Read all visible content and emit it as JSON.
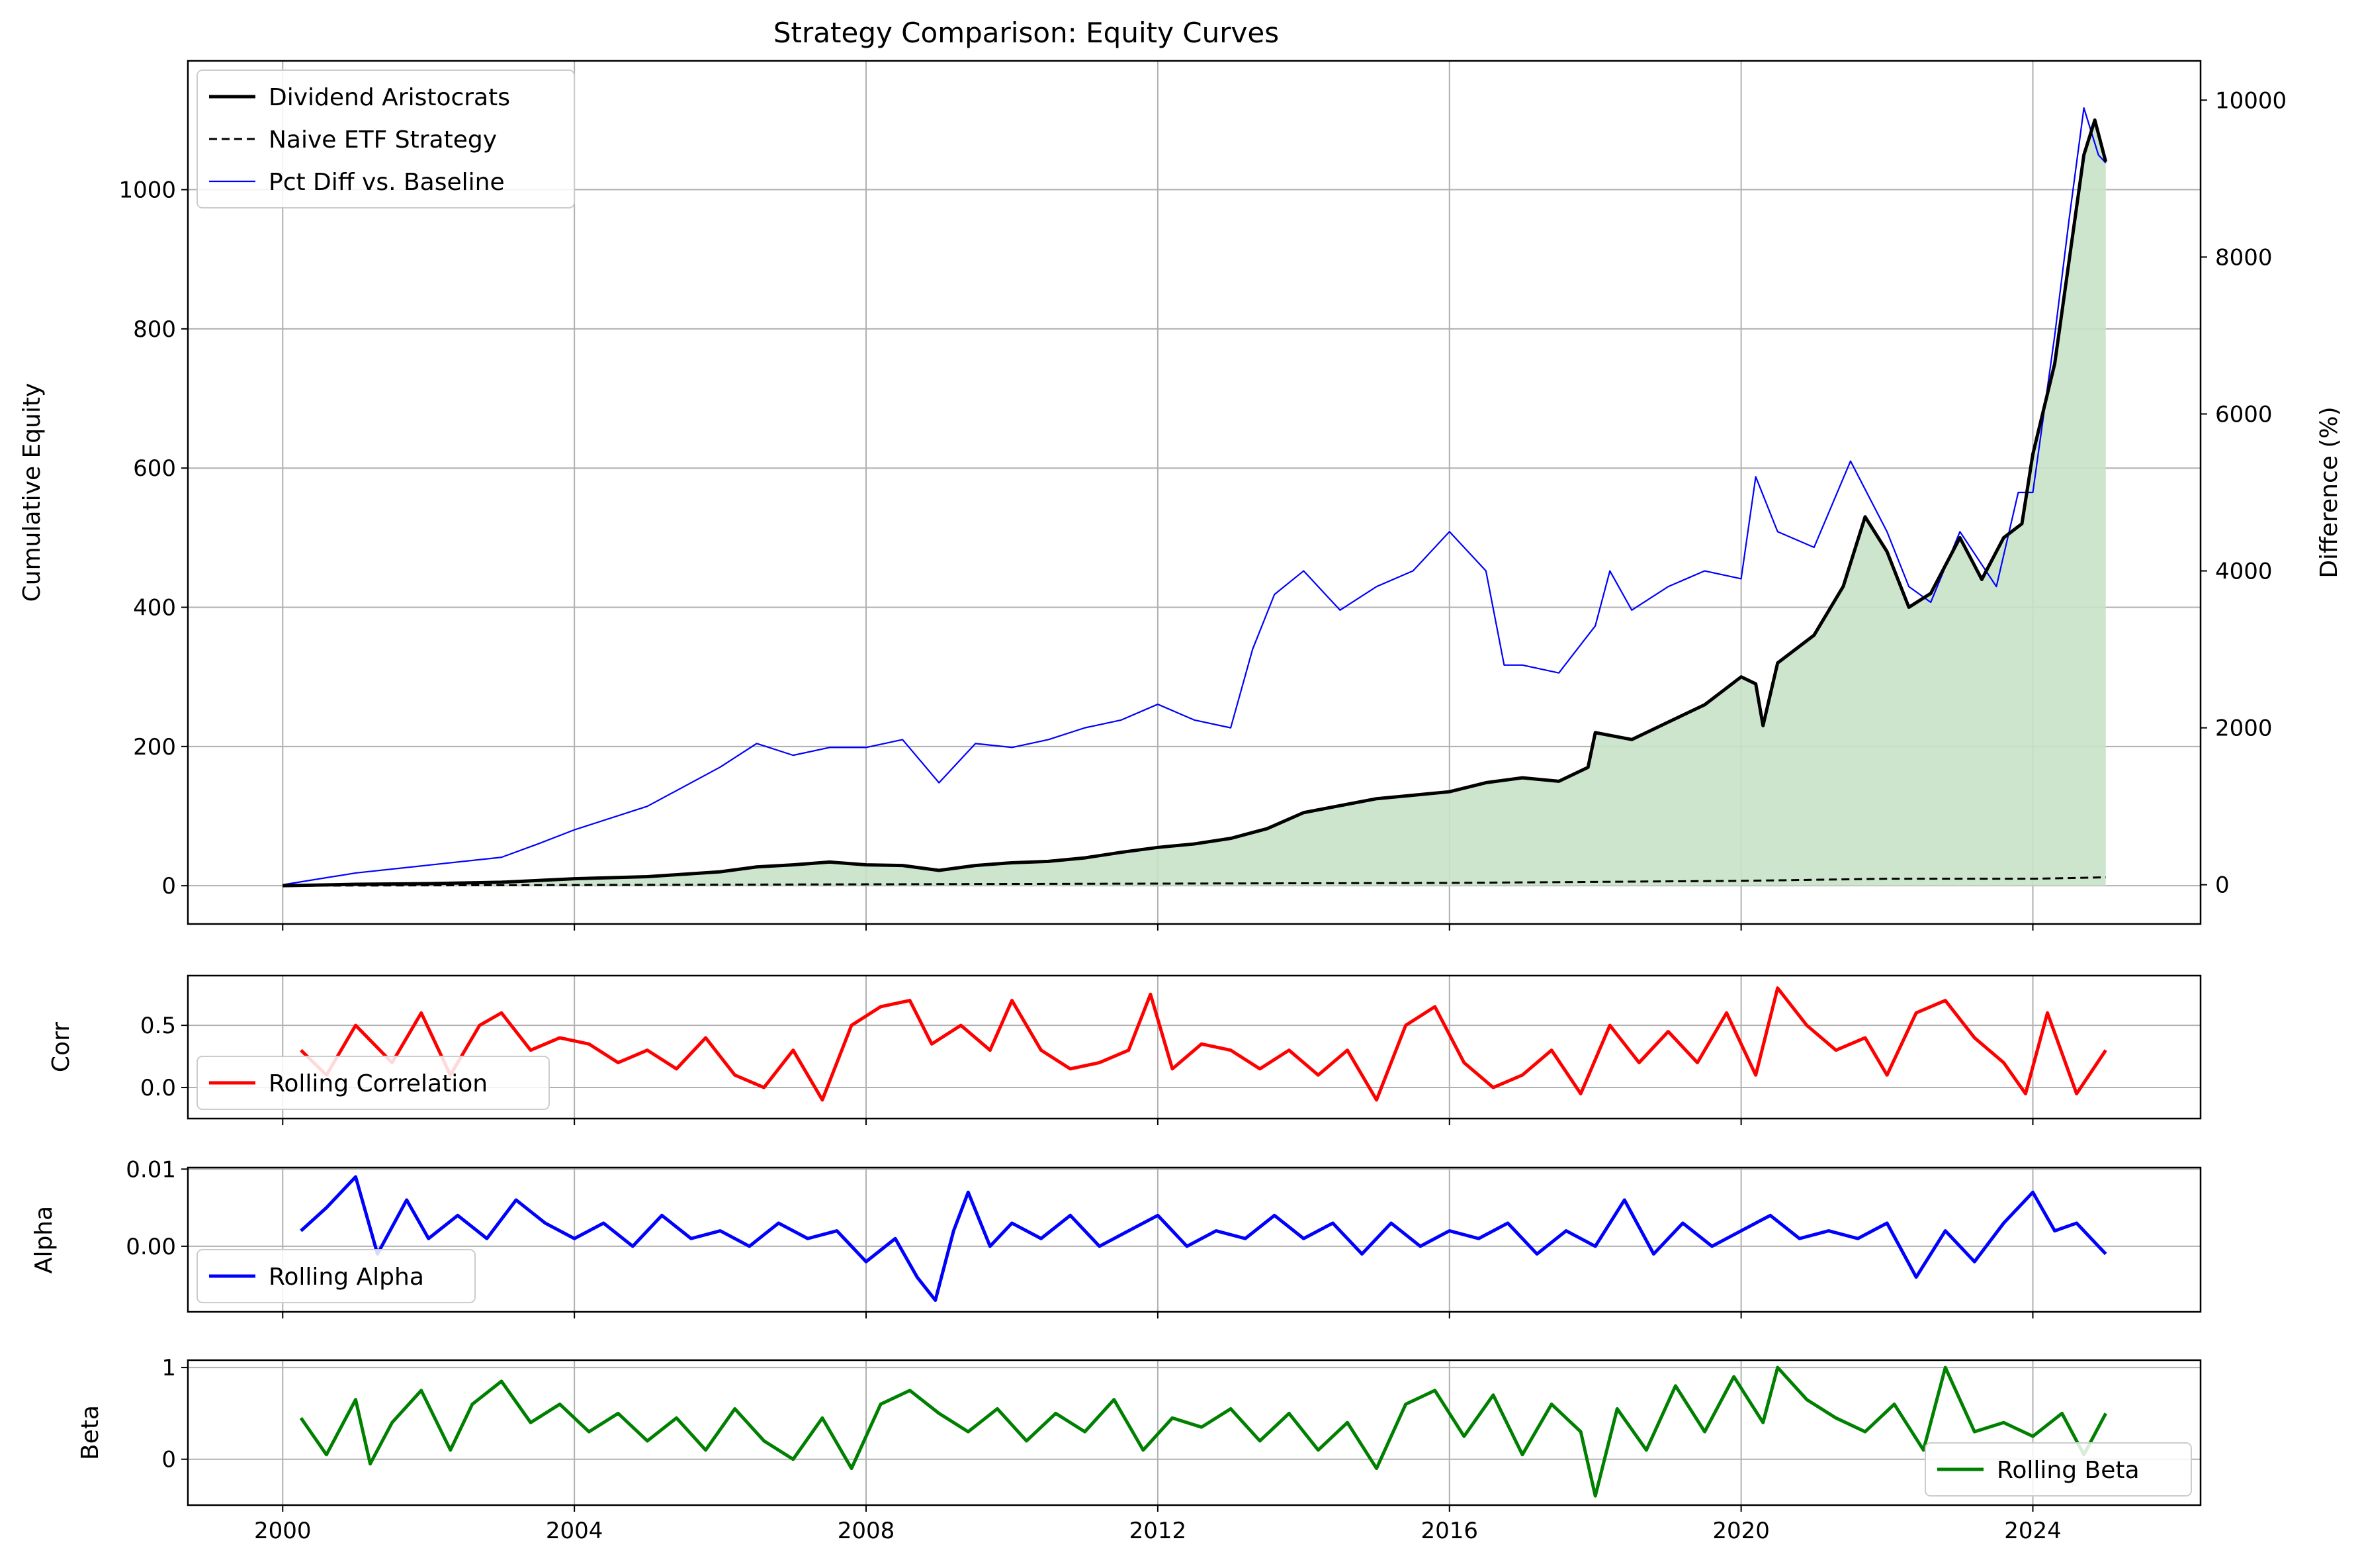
{
  "chart_data": [
    {
      "type": "line",
      "panel": "equity",
      "title": "Strategy Comparison: Equity Curves",
      "xlabel": "",
      "ylabel": "Cumulative Equity",
      "y2label": "Difference (%)",
      "xlim": [
        1998.7,
        2026.3
      ],
      "ylim": [
        -55,
        1185
      ],
      "y2lim": [
        -500,
        10500
      ],
      "x_ticks": [
        2000,
        2004,
        2008,
        2012,
        2016,
        2020,
        2024
      ],
      "x_tick_labels": [
        "",
        "",
        "",
        "",
        "",
        "",
        ""
      ],
      "y_ticks": [
        0,
        200,
        400,
        600,
        800,
        1000
      ],
      "y_tick_labels": [
        "0",
        "200",
        "400",
        "600",
        "800",
        "1000"
      ],
      "y2_ticks": [
        0,
        2000,
        4000,
        6000,
        8000,
        10000
      ],
      "y2_tick_labels": [
        "0",
        "2000",
        "4000",
        "6000",
        "8000",
        "10000"
      ],
      "grid": true,
      "legend_position": "top-left",
      "fill_between": {
        "series": "Dividend Aristocrats",
        "color": "#c8e2c8"
      },
      "series": [
        {
          "name": "Dividend Aristocrats",
          "color": "#000000",
          "style": "solid",
          "axis": "left",
          "x": [
            2000.0,
            2001.0,
            2002.0,
            2003.0,
            2004.0,
            2005.0,
            2006.0,
            2006.5,
            2007.0,
            2007.5,
            2008.0,
            2008.5,
            2009.0,
            2009.5,
            2010.0,
            2010.5,
            2011.0,
            2011.5,
            2012.0,
            2012.5,
            2013.0,
            2013.5,
            2014.0,
            2014.5,
            2015.0,
            2015.5,
            2016.0,
            2016.5,
            2017.0,
            2017.5,
            2017.9,
            2018.0,
            2018.5,
            2019.0,
            2019.5,
            2020.0,
            2020.2,
            2020.3,
            2020.5,
            2021.0,
            2021.4,
            2021.7,
            2022.0,
            2022.3,
            2022.6,
            2023.0,
            2023.3,
            2023.6,
            2023.85,
            2024.0,
            2024.3,
            2024.5,
            2024.7,
            2024.85,
            2025.0
          ],
          "y": [
            0,
            2,
            3,
            5,
            10,
            13,
            20,
            27,
            30,
            34,
            30,
            29,
            22,
            29,
            33,
            35,
            40,
            48,
            55,
            60,
            68,
            82,
            105,
            115,
            125,
            130,
            135,
            148,
            155,
            150,
            170,
            220,
            210,
            235,
            260,
            300,
            290,
            230,
            320,
            360,
            430,
            530,
            480,
            400,
            420,
            500,
            440,
            500,
            520,
            620,
            750,
            900,
            1050,
            1100,
            1040
          ]
        },
        {
          "name": "Naive ETF Strategy",
          "color": "#000000",
          "style": "dashed",
          "axis": "left",
          "x": [
            2000.0,
            2004.0,
            2008.0,
            2012.0,
            2016.0,
            2020.0,
            2022.0,
            2024.0,
            2025.0
          ],
          "y": [
            0,
            1,
            2,
            3,
            4,
            7,
            10,
            10,
            12
          ]
        },
        {
          "name": "Pct Diff vs. Baseline",
          "color": "#0000ff",
          "style": "solid",
          "axis": "right",
          "x": [
            2000.0,
            2001.0,
            2002.0,
            2003.0,
            2003.5,
            2004.0,
            2005.0,
            2006.0,
            2006.5,
            2007.0,
            2007.5,
            2008.0,
            2008.5,
            2009.0,
            2009.5,
            2010.0,
            2010.5,
            2011.0,
            2011.5,
            2012.0,
            2012.5,
            2013.0,
            2013.3,
            2013.6,
            2014.0,
            2014.5,
            2015.0,
            2015.5,
            2016.0,
            2016.5,
            2016.75,
            2017.0,
            2017.5,
            2018.0,
            2018.2,
            2018.5,
            2019.0,
            2019.5,
            2020.0,
            2020.2,
            2020.5,
            2021.0,
            2021.5,
            2022.0,
            2022.3,
            2022.6,
            2023.0,
            2023.5,
            2023.8,
            2024.0,
            2024.3,
            2024.5,
            2024.7,
            2024.9,
            2025.0
          ],
          "y": [
            0,
            150,
            250,
            350,
            520,
            700,
            1000,
            1500,
            1800,
            1650,
            1750,
            1750,
            1850,
            1300,
            1800,
            1750,
            1850,
            2000,
            2100,
            2300,
            2100,
            2000,
            3000,
            3700,
            4000,
            3500,
            3800,
            4000,
            4500,
            4000,
            2800,
            2800,
            2700,
            3300,
            4000,
            3500,
            3800,
            4000,
            3900,
            5200,
            4500,
            4300,
            5400,
            4500,
            3800,
            3600,
            4500,
            3800,
            5000,
            5000,
            7000,
            8500,
            9900,
            9300,
            9200
          ]
        }
      ]
    },
    {
      "type": "line",
      "panel": "corr",
      "title": "",
      "xlabel": "",
      "ylabel": "Corr",
      "xlim": [
        1998.7,
        2026.3
      ],
      "ylim": [
        -0.25,
        0.9
      ],
      "y_ticks": [
        0.0,
        0.5
      ],
      "y_tick_labels": [
        "0.0",
        "0.5"
      ],
      "grid": true,
      "legend_position": "lower-left",
      "series": [
        {
          "name": "Rolling Correlation",
          "color": "#ff0000",
          "x": [
            2000.25,
            2000.6,
            2001.0,
            2001.5,
            2001.9,
            2002.3,
            2002.7,
            2003.0,
            2003.4,
            2003.8,
            2004.2,
            2004.6,
            2005.0,
            2005.4,
            2005.8,
            2006.2,
            2006.6,
            2007.0,
            2007.4,
            2007.8,
            2008.2,
            2008.6,
            2008.9,
            2009.3,
            2009.7,
            2010.0,
            2010.4,
            2010.8,
            2011.2,
            2011.6,
            2011.9,
            2012.2,
            2012.6,
            2013.0,
            2013.4,
            2013.8,
            2014.2,
            2014.6,
            2015.0,
            2015.4,
            2015.8,
            2016.2,
            2016.6,
            2017.0,
            2017.4,
            2017.8,
            2018.2,
            2018.6,
            2019.0,
            2019.4,
            2019.8,
            2020.2,
            2020.5,
            2020.9,
            2021.3,
            2021.7,
            2022.0,
            2022.4,
            2022.8,
            2023.2,
            2023.6,
            2023.9,
            2024.2,
            2024.6,
            2025.0
          ],
          "y": [
            0.3,
            0.1,
            0.5,
            0.2,
            0.6,
            0.1,
            0.5,
            0.6,
            0.3,
            0.4,
            0.35,
            0.2,
            0.3,
            0.15,
            0.4,
            0.1,
            0.0,
            0.3,
            -0.1,
            0.5,
            0.65,
            0.7,
            0.35,
            0.5,
            0.3,
            0.7,
            0.3,
            0.15,
            0.2,
            0.3,
            0.75,
            0.15,
            0.35,
            0.3,
            0.15,
            0.3,
            0.1,
            0.3,
            -0.1,
            0.5,
            0.65,
            0.2,
            0.0,
            0.1,
            0.3,
            -0.05,
            0.5,
            0.2,
            0.45,
            0.2,
            0.6,
            0.1,
            0.8,
            0.5,
            0.3,
            0.4,
            0.1,
            0.6,
            0.7,
            0.4,
            0.2,
            -0.05,
            0.6,
            -0.05,
            0.3
          ]
        }
      ]
    },
    {
      "type": "line",
      "panel": "alpha",
      "title": "",
      "xlabel": "",
      "ylabel": "Alpha",
      "xlim": [
        1998.7,
        2026.3
      ],
      "ylim": [
        -0.0085,
        0.0102
      ],
      "y_ticks": [
        0.0,
        0.01
      ],
      "y_tick_labels": [
        "0.00",
        "0.01"
      ],
      "grid": true,
      "legend_position": "lower-left",
      "series": [
        {
          "name": "Rolling Alpha",
          "color": "#0000ff",
          "x": [
            2000.25,
            2000.6,
            2001.0,
            2001.3,
            2001.7,
            2002.0,
            2002.4,
            2002.8,
            2003.2,
            2003.6,
            2004.0,
            2004.4,
            2004.8,
            2005.2,
            2005.6,
            2006.0,
            2006.4,
            2006.8,
            2007.2,
            2007.6,
            2008.0,
            2008.4,
            2008.7,
            2008.95,
            2009.2,
            2009.4,
            2009.7,
            2010.0,
            2010.4,
            2010.8,
            2011.2,
            2011.6,
            2012.0,
            2012.4,
            2012.8,
            2013.2,
            2013.6,
            2014.0,
            2014.4,
            2014.8,
            2015.2,
            2015.6,
            2016.0,
            2016.4,
            2016.8,
            2017.2,
            2017.6,
            2018.0,
            2018.4,
            2018.8,
            2019.2,
            2019.6,
            2020.0,
            2020.4,
            2020.8,
            2021.2,
            2021.6,
            2022.0,
            2022.4,
            2022.8,
            2023.2,
            2023.6,
            2024.0,
            2024.3,
            2024.6,
            2025.0
          ],
          "y": [
            0.002,
            0.005,
            0.009,
            -0.001,
            0.006,
            0.001,
            0.004,
            0.001,
            0.006,
            0.003,
            0.001,
            0.003,
            0.0,
            0.004,
            0.001,
            0.002,
            0.0,
            0.003,
            0.001,
            0.002,
            -0.002,
            0.001,
            -0.004,
            -0.007,
            0.002,
            0.007,
            0.0,
            0.003,
            0.001,
            0.004,
            0.0,
            0.002,
            0.004,
            0.0,
            0.002,
            0.001,
            0.004,
            0.001,
            0.003,
            -0.001,
            0.003,
            0.0,
            0.002,
            0.001,
            0.003,
            -0.001,
            0.002,
            0.0,
            0.006,
            -0.001,
            0.003,
            0.0,
            0.002,
            0.004,
            0.001,
            0.002,
            0.001,
            0.003,
            -0.004,
            0.002,
            -0.002,
            0.003,
            0.007,
            0.002,
            0.003,
            -0.001
          ]
        }
      ]
    },
    {
      "type": "line",
      "panel": "beta",
      "title": "",
      "xlabel": "",
      "ylabel": "Beta",
      "xlim": [
        1998.7,
        2026.3
      ],
      "ylim": [
        -0.5,
        1.08
      ],
      "x_ticks": [
        2000,
        2004,
        2008,
        2012,
        2016,
        2020,
        2024
      ],
      "x_tick_labels": [
        "2000",
        "2004",
        "2008",
        "2012",
        "2016",
        "2020",
        "2024"
      ],
      "y_ticks": [
        0,
        1
      ],
      "y_tick_labels": [
        "0",
        "1"
      ],
      "grid": true,
      "legend_position": "lower-right",
      "series": [
        {
          "name": "Rolling Beta",
          "color": "#008000",
          "x": [
            2000.25,
            2000.6,
            2001.0,
            2001.2,
            2001.5,
            2001.9,
            2002.3,
            2002.6,
            2003.0,
            2003.4,
            2003.8,
            2004.2,
            2004.6,
            2005.0,
            2005.4,
            2005.8,
            2006.2,
            2006.6,
            2007.0,
            2007.4,
            2007.8,
            2008.2,
            2008.6,
            2009.0,
            2009.4,
            2009.8,
            2010.2,
            2010.6,
            2011.0,
            2011.4,
            2011.8,
            2012.2,
            2012.6,
            2013.0,
            2013.4,
            2013.8,
            2014.2,
            2014.6,
            2015.0,
            2015.4,
            2015.8,
            2016.2,
            2016.6,
            2017.0,
            2017.4,
            2017.8,
            2018.0,
            2018.3,
            2018.7,
            2019.1,
            2019.5,
            2019.9,
            2020.3,
            2020.5,
            2020.9,
            2021.3,
            2021.7,
            2022.1,
            2022.5,
            2022.8,
            2023.2,
            2023.6,
            2024.0,
            2024.4,
            2024.7,
            2025.0
          ],
          "y": [
            0.45,
            0.05,
            0.65,
            -0.05,
            0.4,
            0.75,
            0.1,
            0.6,
            0.85,
            0.4,
            0.6,
            0.3,
            0.5,
            0.2,
            0.45,
            0.1,
            0.55,
            0.2,
            0.0,
            0.45,
            -0.1,
            0.6,
            0.75,
            0.5,
            0.3,
            0.55,
            0.2,
            0.5,
            0.3,
            0.65,
            0.1,
            0.45,
            0.35,
            0.55,
            0.2,
            0.5,
            0.1,
            0.4,
            -0.1,
            0.6,
            0.75,
            0.25,
            0.7,
            0.05,
            0.6,
            0.3,
            -0.4,
            0.55,
            0.1,
            0.8,
            0.3,
            0.9,
            0.4,
            1.0,
            0.65,
            0.45,
            0.3,
            0.6,
            0.1,
            1.0,
            0.3,
            0.4,
            0.25,
            0.5,
            0.05,
            0.5
          ]
        }
      ]
    }
  ]
}
